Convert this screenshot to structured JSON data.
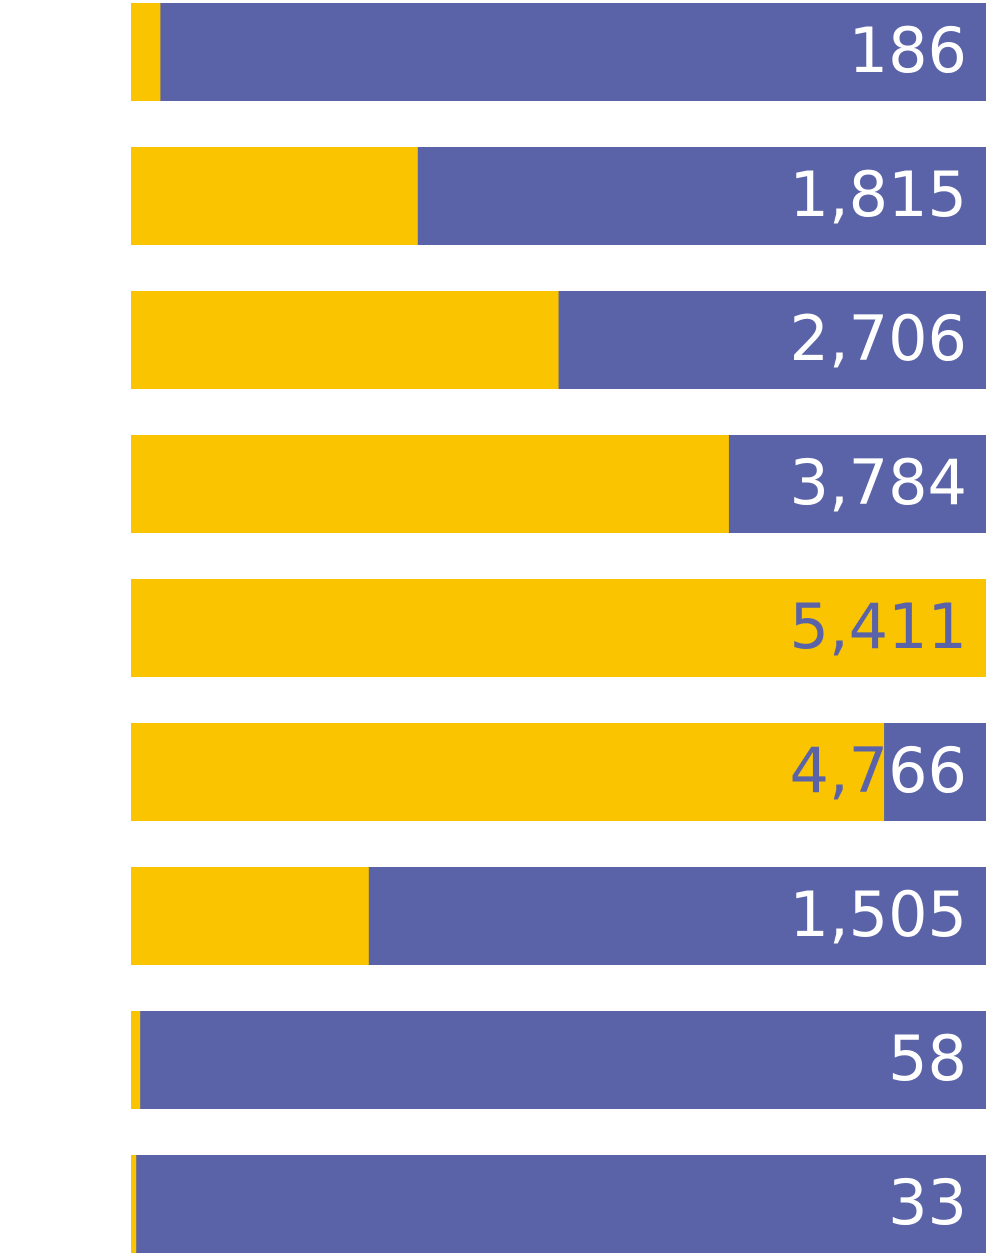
{
  "chart_data": {
    "type": "bar",
    "orientation": "horizontal",
    "stacked": "progress",
    "categories": [
      "",
      "",
      "",
      "",
      "",
      "",
      "",
      "",
      ""
    ],
    "values": [
      186,
      1815,
      2706,
      3784,
      5411,
      4766,
      1505,
      58,
      33
    ],
    "xlim": [
      0,
      5411
    ],
    "grid": false,
    "legend": "none",
    "title": "",
    "xlabel": "",
    "ylabel": ""
  },
  "colors": {
    "fill": "#FAC400",
    "track": "#5A63A7",
    "label_on_track": "#FFFFFF",
    "label_on_fill": "#5A63A7"
  }
}
